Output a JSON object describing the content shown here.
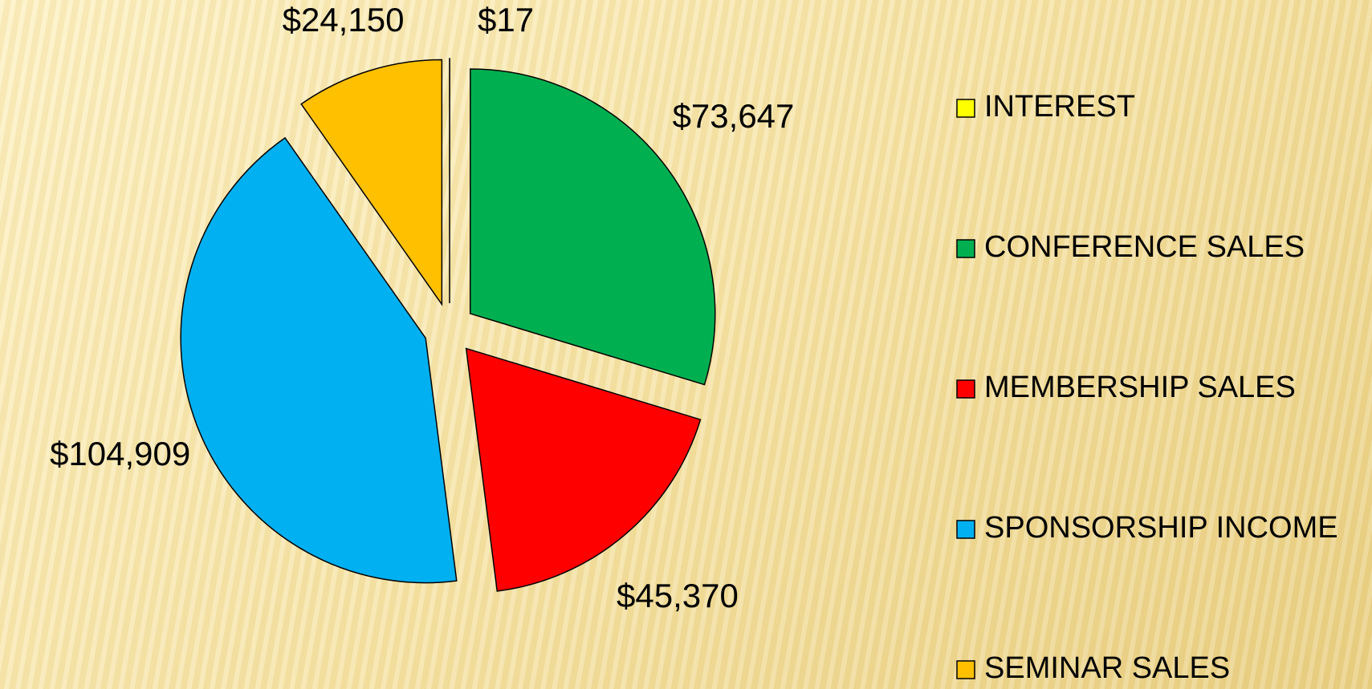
{
  "chart_data": {
    "type": "pie",
    "categories": [
      "INTEREST",
      "CONFERENCE SALES",
      "MEMBERSHIP SALES",
      "SPONSORSHIP INCOME",
      "SEMINAR SALES"
    ],
    "values": [
      17,
      73647,
      45370,
      104909,
      24150
    ],
    "value_labels": [
      "$17",
      "$73,647",
      "$45,370",
      "$104,909",
      "$24,150"
    ],
    "colors": [
      "#ffff00",
      "#00b050",
      "#ff0000",
      "#00b0f0",
      "#ffc000"
    ],
    "legend": "right"
  }
}
